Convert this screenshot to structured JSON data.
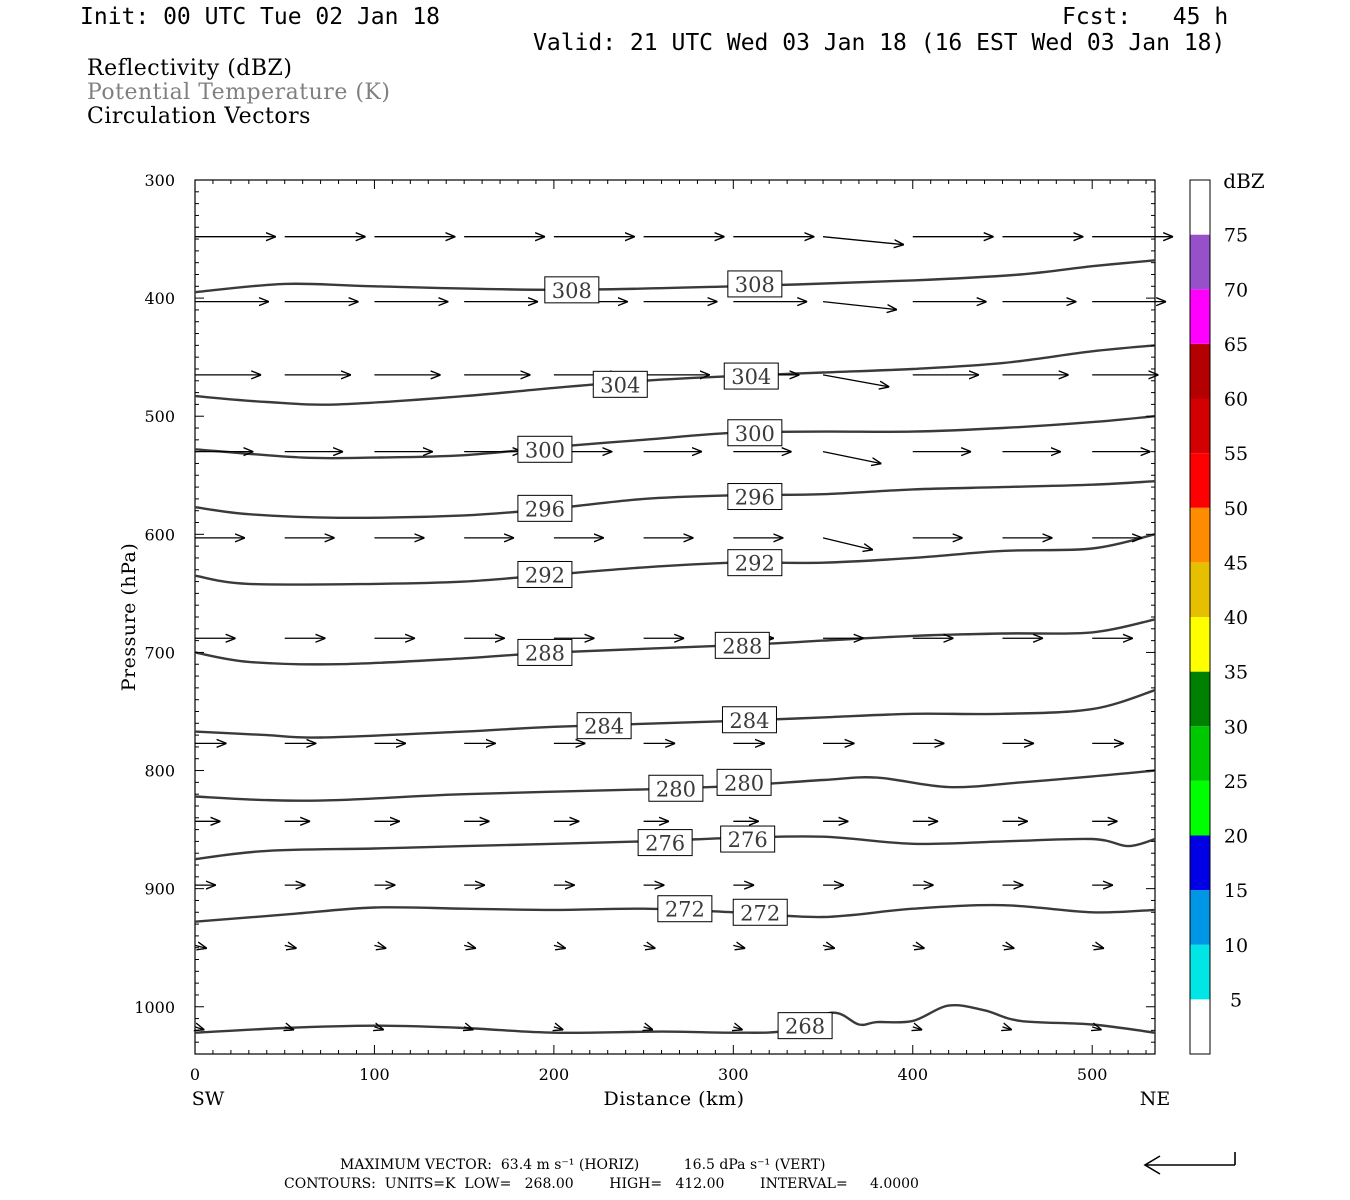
{
  "header": {
    "init": "Init: 00 UTC Tue 02 Jan 18",
    "fcst": "Fcst:   45 h",
    "valid": "Valid: 21 UTC Wed 03 Jan 18 (16 EST Wed 03 Jan 18)"
  },
  "legend": {
    "line1": "Reflectivity (dBZ)",
    "line2": "Potential Temperature (K)",
    "line3": "Circulation Vectors"
  },
  "colors": {
    "contour": "#3a3a3a",
    "legend_line2": "#808080",
    "label_box": "#ffffff"
  },
  "footer": {
    "max_vector": "MAXIMUM VECTOR:  63.4 m s⁻¹ (HORIZ)          16.5 dPa s⁻¹ (VERT)",
    "contours": "CONTOURS:  UNITS=K  LOW=   268.00        HIGH=   412.00        INTERVAL=     4.0000"
  },
  "chart_data": {
    "type": "cross-section",
    "xlabel": "Distance (km)",
    "ylabel": "Pressure (hPa)",
    "x_left_label": "SW",
    "x_right_label": "NE",
    "xlim": [
      0,
      535
    ],
    "ylim": [
      1040,
      300
    ],
    "xticks": [
      0,
      100,
      200,
      300,
      400,
      500
    ],
    "yticks": [
      300,
      400,
      500,
      600,
      700,
      800,
      900,
      1000
    ],
    "colorbar": {
      "title": "dBZ",
      "ticks": [
        5,
        10,
        15,
        20,
        25,
        30,
        35,
        40,
        45,
        50,
        55,
        60,
        65,
        70,
        75
      ],
      "colors": [
        "#ffffff",
        "#00e6e6",
        "#0096e6",
        "#0000e6",
        "#00ff00",
        "#00c800",
        "#008000",
        "#ffff00",
        "#e6c000",
        "#ff8c00",
        "#ff0000",
        "#d20000",
        "#b40000",
        "#ff00ff",
        "#9650c8",
        "#ffffff"
      ]
    },
    "isentropes": [
      {
        "theta": 308,
        "labels": [
          [
            210,
            393
          ],
          [
            312,
            388
          ]
        ],
        "points": [
          [
            0,
            395
          ],
          [
            50,
            388
          ],
          [
            100,
            390
          ],
          [
            200,
            393
          ],
          [
            300,
            390
          ],
          [
            400,
            385
          ],
          [
            460,
            380
          ],
          [
            500,
            373
          ],
          [
            535,
            368
          ]
        ]
      },
      {
        "theta": 304,
        "labels": [
          [
            237,
            473
          ],
          [
            310,
            466
          ]
        ],
        "points": [
          [
            0,
            483
          ],
          [
            40,
            488
          ],
          [
            80,
            490
          ],
          [
            150,
            483
          ],
          [
            200,
            476
          ],
          [
            250,
            470
          ],
          [
            300,
            466
          ],
          [
            350,
            463
          ],
          [
            400,
            460
          ],
          [
            450,
            455
          ],
          [
            500,
            445
          ],
          [
            535,
            440
          ]
        ]
      },
      {
        "theta": 300,
        "labels": [
          [
            195,
            528
          ],
          [
            312,
            514
          ]
        ],
        "points": [
          [
            0,
            528
          ],
          [
            60,
            535
          ],
          [
            100,
            535
          ],
          [
            150,
            533
          ],
          [
            200,
            526
          ],
          [
            250,
            520
          ],
          [
            300,
            514
          ],
          [
            350,
            513
          ],
          [
            400,
            513
          ],
          [
            450,
            510
          ],
          [
            500,
            505
          ],
          [
            535,
            500
          ]
        ]
      },
      {
        "theta": 296,
        "labels": [
          [
            195,
            578
          ],
          [
            312,
            568
          ]
        ],
        "points": [
          [
            0,
            577
          ],
          [
            30,
            583
          ],
          [
            80,
            586
          ],
          [
            150,
            584
          ],
          [
            200,
            578
          ],
          [
            250,
            570
          ],
          [
            300,
            567
          ],
          [
            350,
            566
          ],
          [
            400,
            562
          ],
          [
            450,
            560
          ],
          [
            500,
            558
          ],
          [
            535,
            555
          ]
        ]
      },
      {
        "theta": 292,
        "labels": [
          [
            195,
            634
          ],
          [
            312,
            624
          ]
        ],
        "points": [
          [
            0,
            635
          ],
          [
            30,
            642
          ],
          [
            100,
            642
          ],
          [
            150,
            640
          ],
          [
            200,
            634
          ],
          [
            250,
            628
          ],
          [
            300,
            624
          ],
          [
            350,
            624
          ],
          [
            400,
            620
          ],
          [
            450,
            614
          ],
          [
            500,
            612
          ],
          [
            535,
            600
          ]
        ]
      },
      {
        "theta": 288,
        "labels": [
          [
            195,
            700
          ],
          [
            305,
            694
          ]
        ],
        "points": [
          [
            0,
            700
          ],
          [
            30,
            708
          ],
          [
            80,
            710
          ],
          [
            150,
            705
          ],
          [
            200,
            700
          ],
          [
            300,
            694
          ],
          [
            350,
            690
          ],
          [
            400,
            686
          ],
          [
            450,
            684
          ],
          [
            500,
            683
          ],
          [
            535,
            672
          ]
        ]
      },
      {
        "theta": 284,
        "labels": [
          [
            228,
            762
          ],
          [
            309,
            757
          ]
        ],
        "points": [
          [
            0,
            767
          ],
          [
            40,
            770
          ],
          [
            70,
            772
          ],
          [
            150,
            767
          ],
          [
            200,
            763
          ],
          [
            300,
            758
          ],
          [
            350,
            755
          ],
          [
            400,
            752
          ],
          [
            450,
            752
          ],
          [
            500,
            748
          ],
          [
            535,
            732
          ]
        ]
      },
      {
        "theta": 280,
        "labels": [
          [
            268,
            815
          ],
          [
            306,
            810
          ]
        ],
        "points": [
          [
            0,
            822
          ],
          [
            40,
            825
          ],
          [
            80,
            825
          ],
          [
            150,
            820
          ],
          [
            250,
            816
          ],
          [
            300,
            813
          ],
          [
            350,
            808
          ],
          [
            380,
            806
          ],
          [
            420,
            814
          ],
          [
            460,
            810
          ],
          [
            500,
            805
          ],
          [
            535,
            800
          ]
        ]
      },
      {
        "theta": 276,
        "labels": [
          [
            262,
            861
          ],
          [
            308,
            858
          ]
        ],
        "points": [
          [
            0,
            875
          ],
          [
            40,
            868
          ],
          [
            100,
            866
          ],
          [
            150,
            864
          ],
          [
            250,
            860
          ],
          [
            300,
            857
          ],
          [
            350,
            856
          ],
          [
            400,
            862
          ],
          [
            450,
            860
          ],
          [
            500,
            858
          ],
          [
            520,
            864
          ],
          [
            535,
            858
          ]
        ]
      },
      {
        "theta": 272,
        "labels": [
          [
            273,
            917
          ],
          [
            315,
            920
          ]
        ],
        "points": [
          [
            0,
            928
          ],
          [
            50,
            922
          ],
          [
            100,
            916
          ],
          [
            150,
            917
          ],
          [
            200,
            918
          ],
          [
            250,
            917
          ],
          [
            300,
            920
          ],
          [
            350,
            924
          ],
          [
            400,
            917
          ],
          [
            450,
            914
          ],
          [
            500,
            920
          ],
          [
            535,
            918
          ]
        ]
      },
      {
        "theta": 268,
        "labels": [
          [
            340,
            1016
          ]
        ],
        "points": [
          [
            0,
            1022
          ],
          [
            50,
            1018
          ],
          [
            100,
            1016
          ],
          [
            150,
            1018
          ],
          [
            200,
            1022
          ],
          [
            260,
            1021
          ],
          [
            300,
            1022
          ],
          [
            330,
            1020
          ],
          [
            355,
            1005
          ],
          [
            370,
            1015
          ],
          [
            380,
            1013
          ],
          [
            400,
            1012
          ],
          [
            420,
            999
          ],
          [
            440,
            1003
          ],
          [
            460,
            1012
          ],
          [
            500,
            1015
          ],
          [
            535,
            1022
          ]
        ]
      }
    ],
    "vector_reference": {
      "dx": -50,
      "dp": 0
    }
  }
}
